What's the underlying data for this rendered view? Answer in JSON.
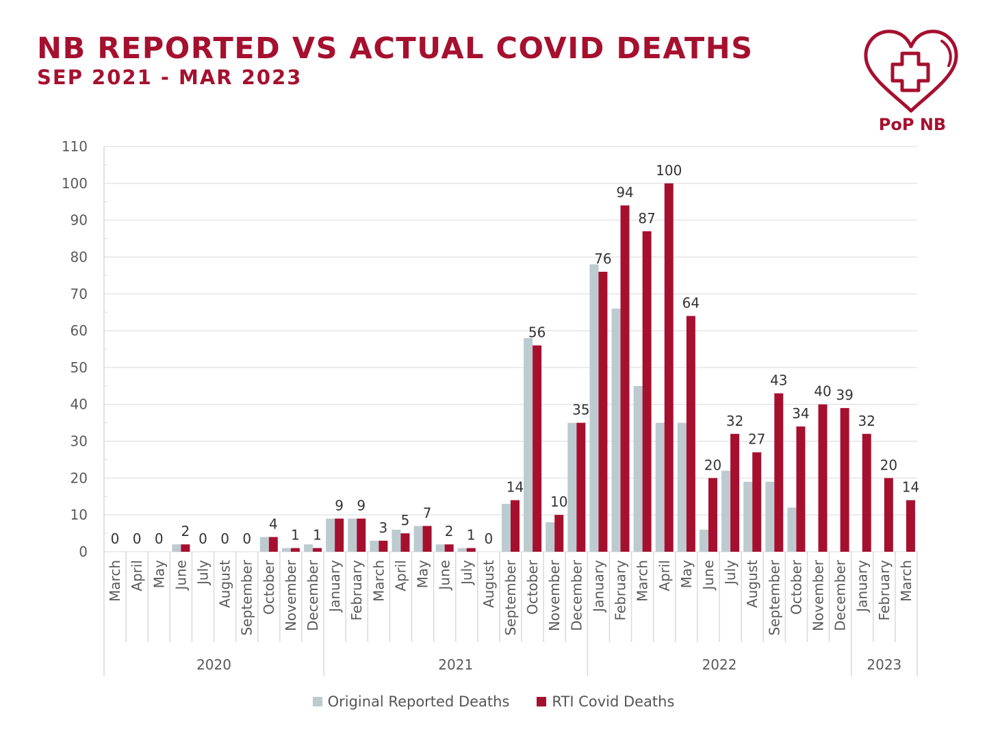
{
  "header": {
    "title": "NB REPORTED VS ACTUAL COVID DEATHS",
    "subtitle": "SEP 2021 - MAR 2023"
  },
  "logo": {
    "text": "PoP NB",
    "icon": "heart-plus-icon",
    "color": "#a6102f"
  },
  "colors": {
    "original": "#bccbd0",
    "rti": "#a6102f",
    "grid": "#d9d9d9",
    "axis_text": "#595959"
  },
  "chart_data": {
    "type": "bar",
    "categories": [
      "March",
      "April",
      "May",
      "June",
      "July",
      "August",
      "September",
      "October",
      "November",
      "December",
      "January",
      "February",
      "March",
      "April",
      "May",
      "June",
      "July",
      "August",
      "September",
      "October",
      "November",
      "December",
      "January",
      "February",
      "March",
      "April",
      "May",
      "June",
      "July",
      "August",
      "September",
      "October",
      "November",
      "December",
      "January",
      "February",
      "March"
    ],
    "groups": [
      {
        "label": "2020",
        "start": 0,
        "end": 9
      },
      {
        "label": "2021",
        "start": 10,
        "end": 21
      },
      {
        "label": "2022",
        "start": 22,
        "end": 33
      },
      {
        "label": "2023",
        "start": 34,
        "end": 36
      }
    ],
    "series": [
      {
        "name": "Original Reported Deaths",
        "color": "#bccbd0",
        "values": [
          0,
          0,
          0,
          2,
          0,
          0,
          0,
          4,
          1,
          2,
          9,
          9,
          3,
          6,
          7,
          2,
          1,
          0,
          13,
          58,
          8,
          35,
          78,
          66,
          45,
          35,
          35,
          6,
          22,
          19,
          19,
          12,
          0,
          0,
          0,
          0,
          0
        ]
      },
      {
        "name": "RTI Covid Deaths",
        "color": "#a6102f",
        "values": [
          0,
          0,
          0,
          2,
          0,
          0,
          0,
          4,
          1,
          1,
          9,
          9,
          3,
          5,
          7,
          2,
          1,
          0,
          14,
          56,
          10,
          35,
          76,
          94,
          87,
          100,
          64,
          20,
          32,
          27,
          43,
          34,
          40,
          39,
          32,
          20,
          14
        ]
      }
    ],
    "data_labels": [
      "0",
      "0",
      "0",
      "2",
      "0",
      "0",
      "0",
      "4",
      "1",
      "1",
      "9",
      "9",
      "3",
      "5",
      "7",
      "2",
      "1",
      "0",
      "14",
      "56",
      "10",
      "35",
      "76",
      "94",
      "87",
      "100",
      "64",
      "20",
      "32",
      "27",
      "43",
      "34",
      "40",
      "39",
      "32",
      "20",
      "14"
    ],
    "ylim": [
      0,
      110
    ],
    "yticks": [
      0,
      10,
      20,
      30,
      40,
      50,
      60,
      70,
      80,
      90,
      100,
      110
    ],
    "grid": true,
    "legend": "bottom"
  }
}
